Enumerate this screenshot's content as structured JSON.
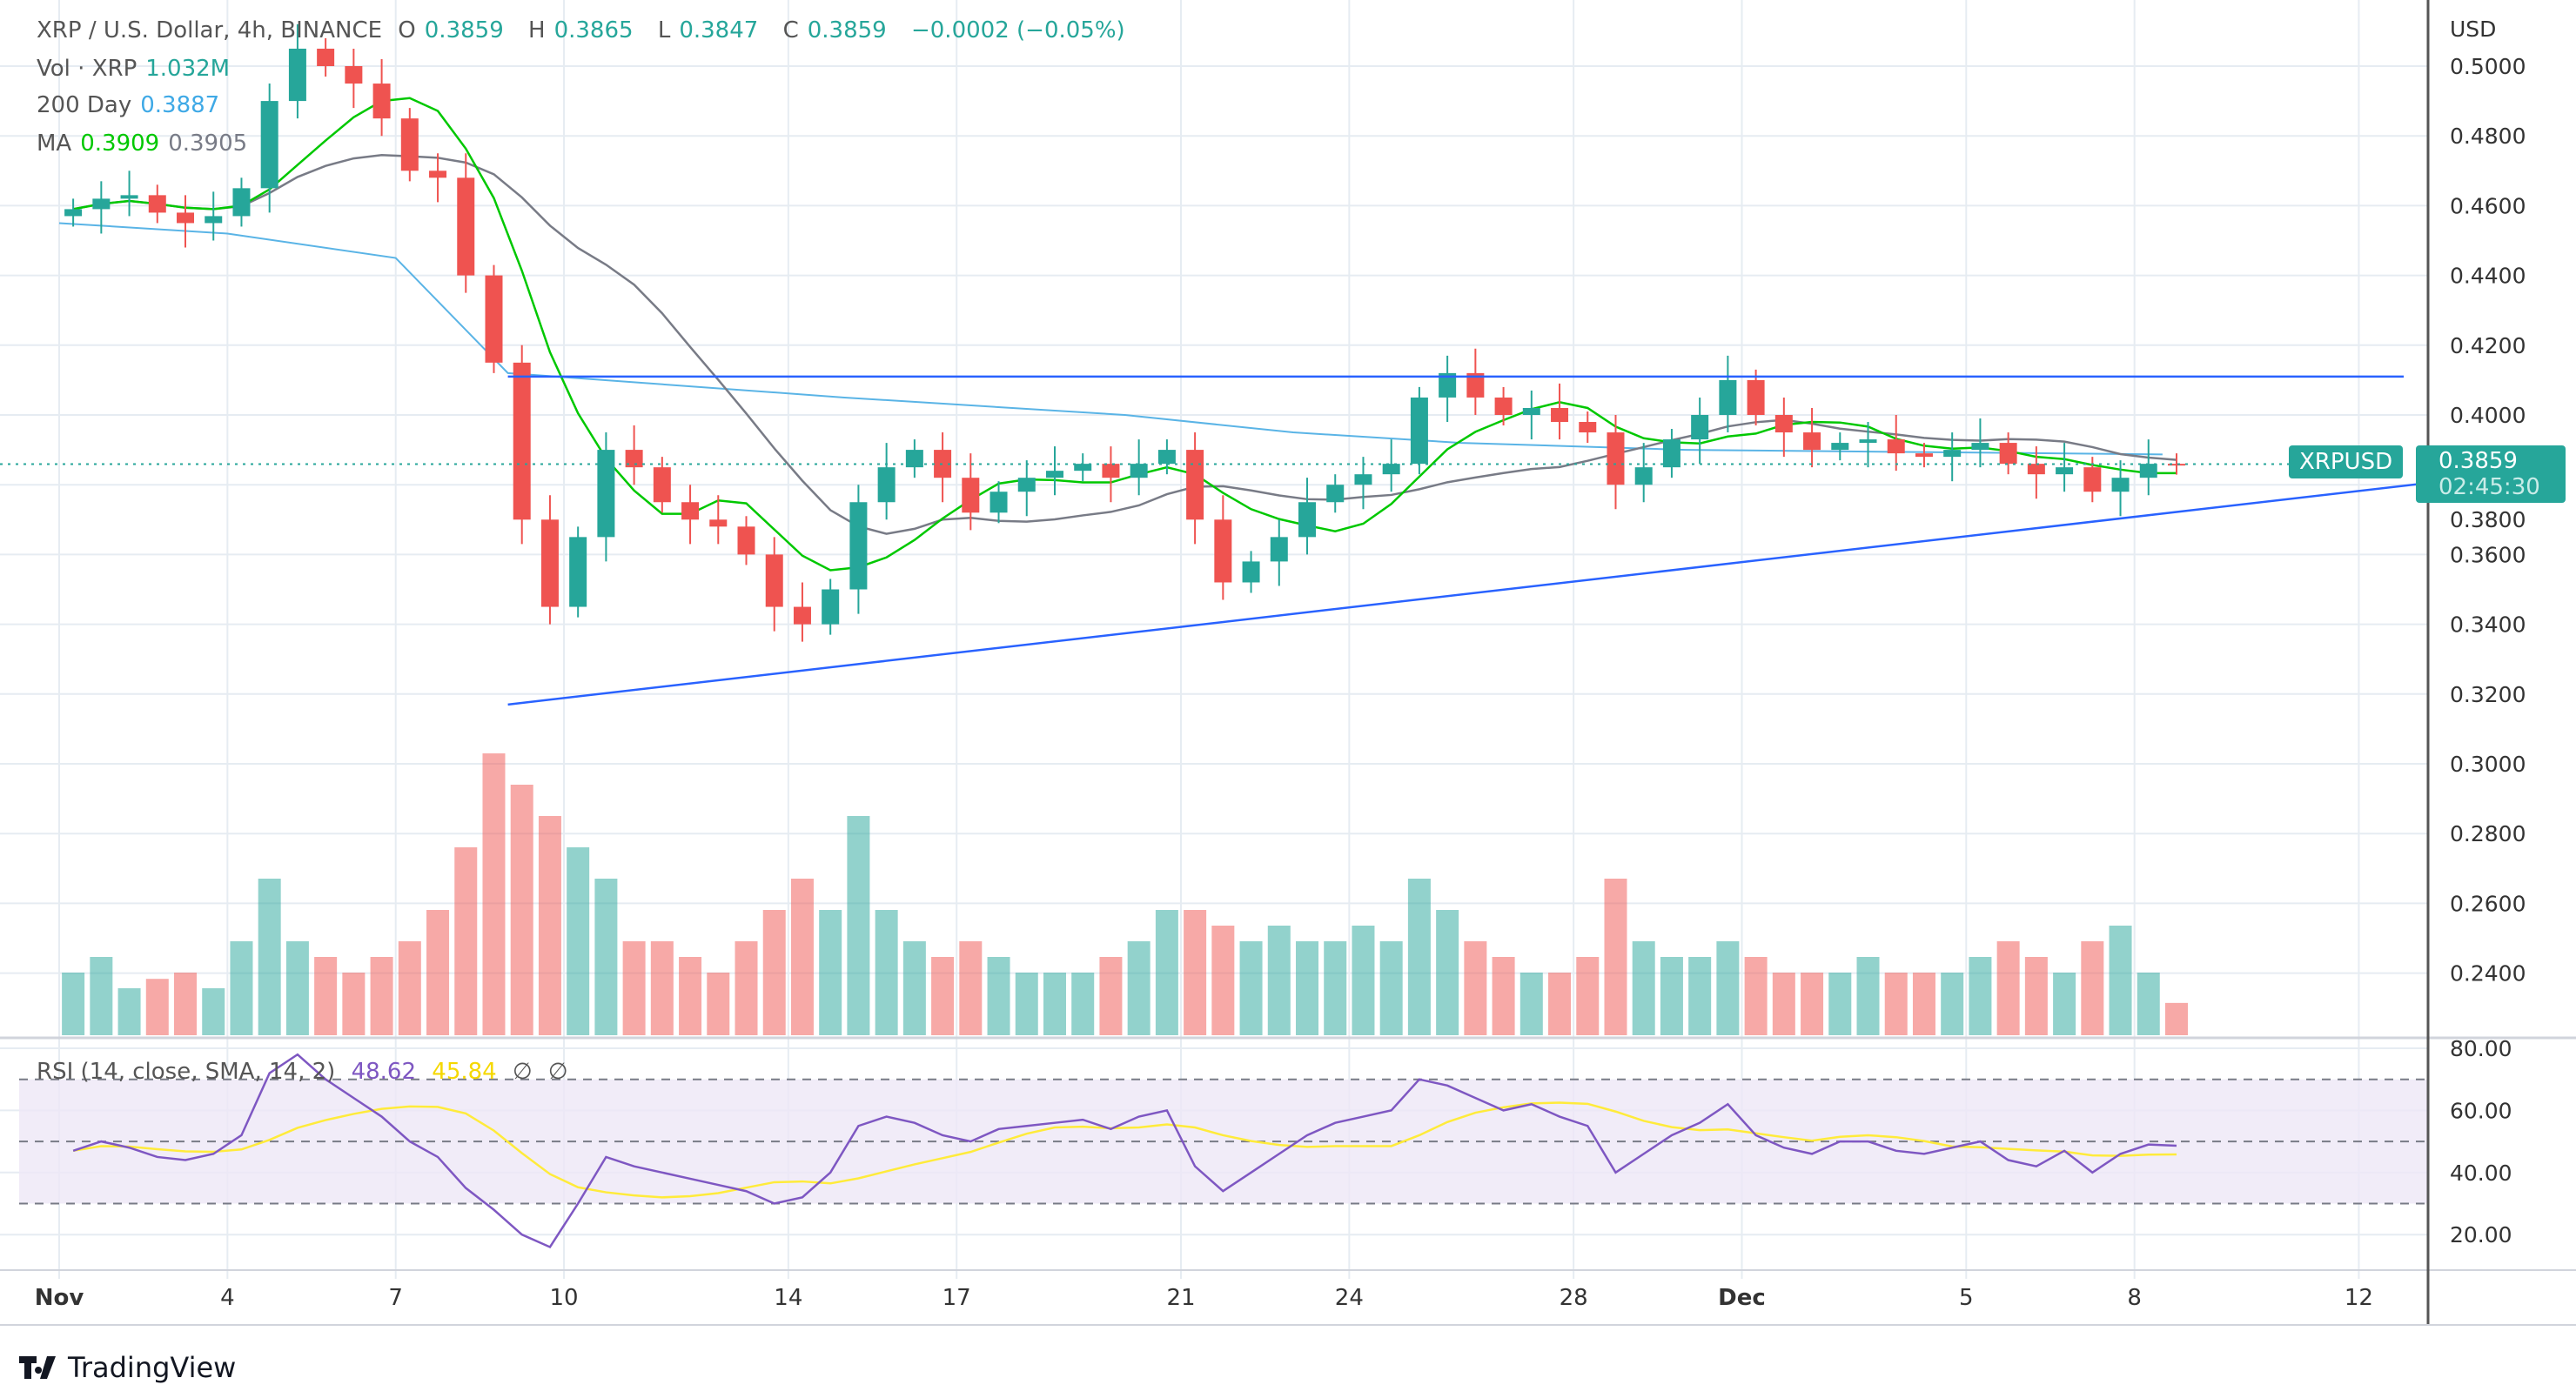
{
  "header": {
    "symbol_title": "XRP / U.S. Dollar, 4h, BINANCE",
    "open_label": "O",
    "open": "0.3859",
    "high_label": "H",
    "high": "0.3865",
    "low_label": "L",
    "low": "0.3847",
    "close_label": "C",
    "close": "0.3859",
    "change": "−0.0002 (−0.05%)"
  },
  "indicators": {
    "volume_label": "Vol · XRP",
    "volume_value": "1.032M",
    "day200_label": "200 Day",
    "day200_value": "0.3887",
    "ma_label": "MA",
    "ma_value_1": "0.3909",
    "ma_value_2": "0.3905",
    "rsi_label": "RSI (14, close, SMA, 14, 2)",
    "rsi_value": "48.62",
    "rsi_sma_value": "45.84",
    "rsi_na_1": "∅",
    "rsi_na_2": "∅"
  },
  "price_tag": {
    "symbol": "XRPUSD",
    "price": "0.3859",
    "countdown": "02:45:30"
  },
  "branding": {
    "logo_text": "TradingView"
  },
  "colors": {
    "up": "#26a69a",
    "down": "#ef5350",
    "ma_fast": "#00c800",
    "ma_slow": "#787b86",
    "day200": "#5ab4e6",
    "trendline": "#2962ff",
    "rsi": "#7e57c2",
    "rsi_sma": "#ffeb3b",
    "rsi_band": "#ede7f6"
  },
  "chart_data": [
    {
      "type": "candlestick",
      "currency_label": "USD",
      "ylim": [
        0.22,
        0.51
      ],
      "y_ticks": [
        "0.5000",
        "0.4800",
        "0.4600",
        "0.4400",
        "0.4200",
        "0.4000",
        "0.3800",
        "0.3600",
        "0.3400",
        "0.3200",
        "0.3000",
        "0.2800",
        "0.2600",
        "0.2400"
      ],
      "x_ticks": [
        [
          "Nov",
          1
        ],
        [
          "4",
          4
        ],
        [
          "7",
          7
        ],
        [
          "10",
          10
        ],
        [
          "14",
          14
        ],
        [
          "17",
          17
        ],
        [
          "21",
          21
        ],
        [
          "24",
          24
        ],
        [
          "28",
          28
        ],
        [
          "Dec",
          31
        ],
        [
          "5",
          35
        ],
        [
          "8",
          38
        ],
        [
          "12",
          42
        ]
      ],
      "closes": [
        0.459,
        0.462,
        0.463,
        0.458,
        0.455,
        0.457,
        0.465,
        0.49,
        0.505,
        0.5,
        0.495,
        0.485,
        0.47,
        0.468,
        0.44,
        0.415,
        0.37,
        0.345,
        0.365,
        0.39,
        0.385,
        0.375,
        0.37,
        0.368,
        0.36,
        0.345,
        0.34,
        0.35,
        0.375,
        0.385,
        0.39,
        0.382,
        0.372,
        0.378,
        0.382,
        0.384,
        0.386,
        0.382,
        0.386,
        0.39,
        0.37,
        0.352,
        0.358,
        0.365,
        0.375,
        0.38,
        0.383,
        0.386,
        0.405,
        0.412,
        0.405,
        0.4,
        0.402,
        0.398,
        0.395,
        0.38,
        0.385,
        0.393,
        0.4,
        0.41,
        0.4,
        0.395,
        0.39,
        0.392,
        0.393,
        0.389,
        0.388,
        0.39,
        0.392,
        0.386,
        0.383,
        0.385,
        0.378,
        0.382,
        0.386,
        0.3859
      ],
      "volume_m": [
        2,
        2.5,
        1.5,
        1.8,
        2,
        1.5,
        3,
        5,
        3,
        2.5,
        2,
        2.5,
        3,
        4,
        6,
        9,
        8,
        7,
        6,
        5,
        3,
        3,
        2.5,
        2,
        3,
        4,
        5,
        4,
        7,
        4,
        3,
        2.5,
        3,
        2.5,
        2,
        2,
        2,
        2.5,
        3,
        4,
        4,
        3.5,
        3,
        3.5,
        3,
        3,
        3.5,
        3,
        5,
        4,
        3,
        2.5,
        2,
        2,
        2.5,
        5,
        3,
        2.5,
        2.5,
        3,
        2.5,
        2,
        2,
        2,
        2.5,
        2,
        2,
        2,
        2.5,
        3,
        2.5,
        2,
        3,
        3.5,
        2,
        1.032
      ],
      "day200_line": [
        [
          1,
          0.455
        ],
        [
          4,
          0.452
        ],
        [
          7,
          0.445
        ],
        [
          9,
          0.412
        ],
        [
          15,
          0.405
        ],
        [
          20,
          0.4
        ],
        [
          23,
          0.395
        ],
        [
          26,
          0.392
        ],
        [
          30,
          0.39
        ],
        [
          38.5,
          0.3887
        ]
      ],
      "trendlines": [
        {
          "from": [
            9,
            0.411
          ],
          "to": [
            42.8,
            0.411
          ]
        },
        {
          "from": [
            9,
            0.317
          ],
          "to": [
            43.5,
            0.381
          ]
        }
      ],
      "last_price": 0.3859
    },
    {
      "type": "line",
      "title": "RSI (14, close, SMA, 14, 2)",
      "ylim": [
        10,
        82
      ],
      "y_ticks": [
        "80.00",
        "60.00",
        "40.00",
        "20.00"
      ],
      "band": [
        30,
        70
      ],
      "rsi": [
        47,
        50,
        48,
        45,
        44,
        46,
        52,
        72,
        78,
        70,
        64,
        58,
        50,
        45,
        35,
        28,
        20,
        16,
        30,
        45,
        42,
        40,
        38,
        36,
        34,
        30,
        32,
        40,
        55,
        58,
        56,
        52,
        50,
        54,
        55,
        56,
        57,
        54,
        58,
        60,
        42,
        34,
        40,
        46,
        52,
        56,
        58,
        60,
        70,
        68,
        64,
        60,
        62,
        58,
        55,
        40,
        46,
        52,
        56,
        62,
        52,
        48,
        46,
        50,
        50,
        47,
        46,
        48,
        50,
        44,
        42,
        47,
        40,
        46,
        49,
        48.62
      ]
    }
  ]
}
